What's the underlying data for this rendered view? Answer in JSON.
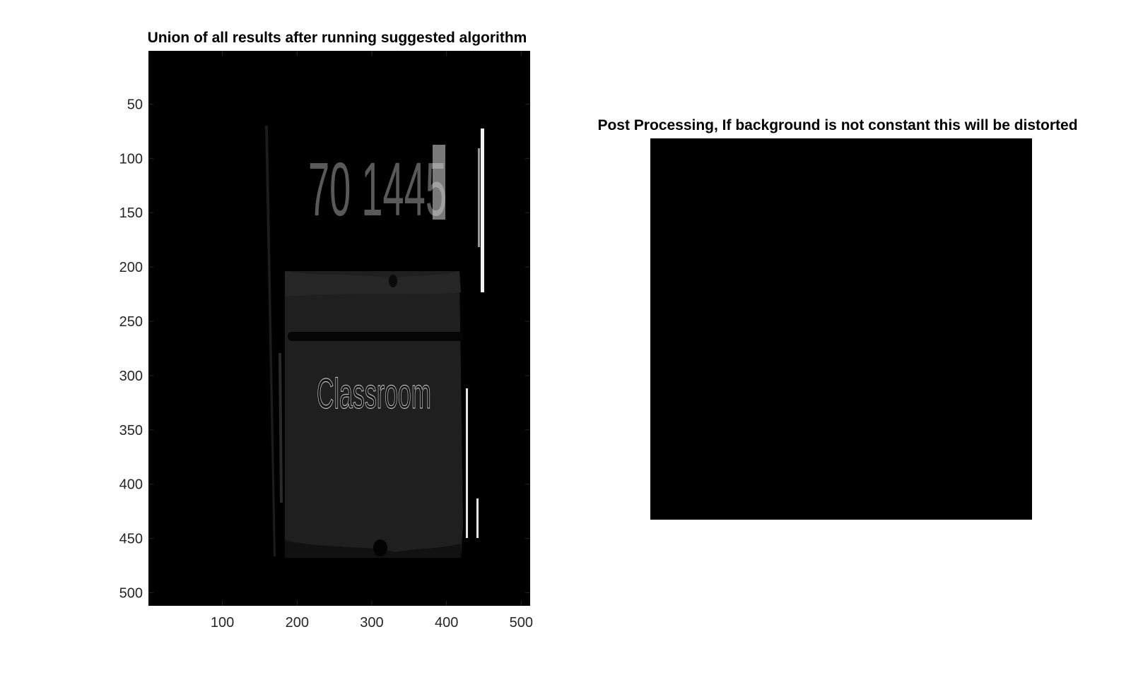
{
  "chart_data": [
    {
      "type": "image",
      "title": "Union of all results after running suggested algorithm",
      "xlim": [
        1,
        512
      ],
      "ylim": [
        1,
        512
      ],
      "y_direction": "reverse",
      "xticks": [
        100,
        200,
        300,
        400,
        500
      ],
      "yticks": [
        50,
        100,
        150,
        200,
        250,
        300,
        350,
        400,
        450,
        500
      ],
      "xtick_labels": [
        "100",
        "200",
        "300",
        "400",
        "500"
      ],
      "ytick_labels": [
        "50",
        "100",
        "150",
        "200",
        "250",
        "300",
        "350",
        "400",
        "450",
        "500"
      ],
      "colormap": "gray",
      "background_color": "#000000",
      "image_text": [
        "70 1445",
        "Classroom"
      ]
    },
    {
      "type": "image",
      "title": "Post Processing, If background is not constant this will be distorted",
      "axis": "off",
      "fill_color": "#000000"
    }
  ]
}
